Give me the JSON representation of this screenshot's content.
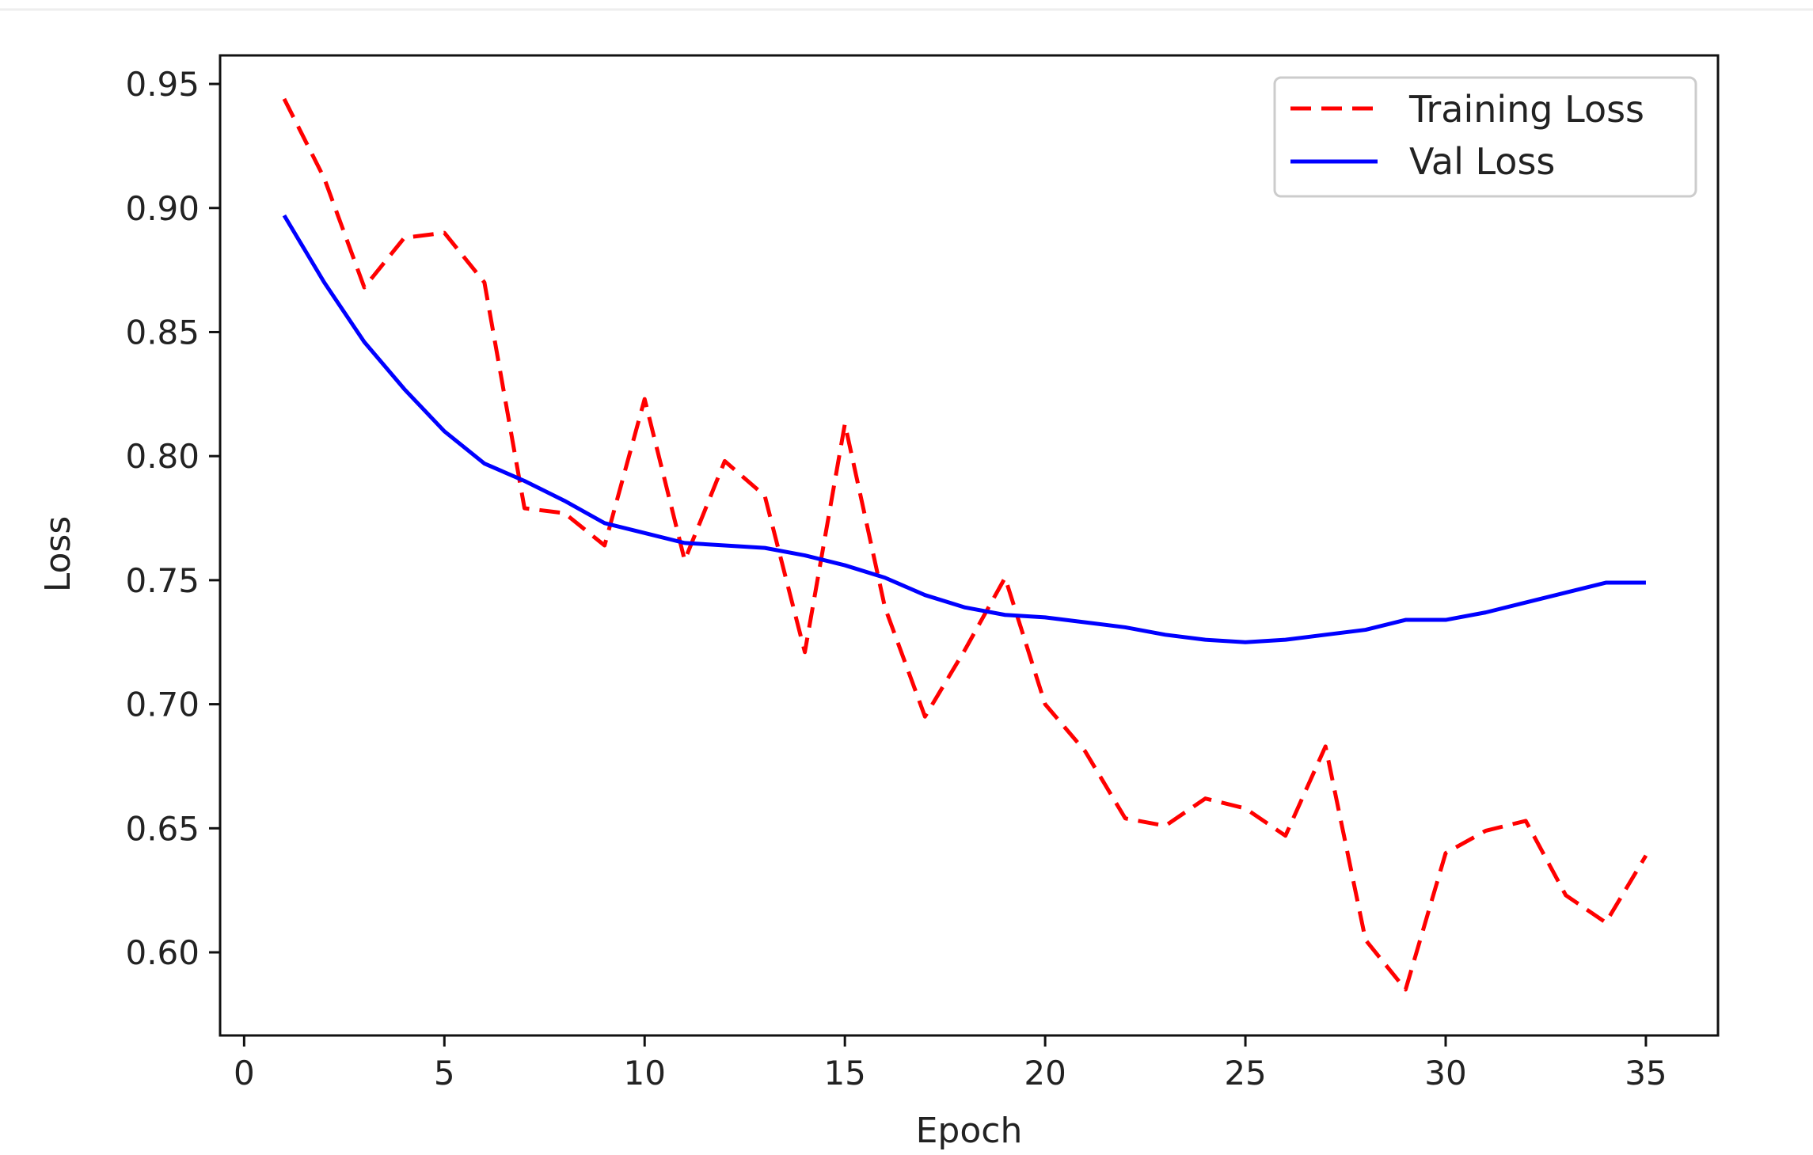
{
  "chart_data": {
    "type": "line",
    "title": "",
    "xlabel": "Epoch",
    "ylabel": "Loss",
    "xlim": [
      -0.6,
      36.8
    ],
    "ylim": [
      0.5665,
      0.9615
    ],
    "xticks": [
      0,
      5,
      10,
      15,
      20,
      25,
      30,
      35
    ],
    "yticks": [
      0.6,
      0.65,
      0.7,
      0.75,
      0.8,
      0.85,
      0.9,
      0.95
    ],
    "xtick_labels": [
      "0",
      "5",
      "10",
      "15",
      "20",
      "25",
      "30",
      "35"
    ],
    "ytick_labels": [
      "0.60",
      "0.65",
      "0.70",
      "0.75",
      "0.80",
      "0.85",
      "0.90",
      "0.95"
    ],
    "grid": false,
    "legend_position": "top-right",
    "x": [
      1,
      2,
      3,
      4,
      5,
      6,
      7,
      8,
      9,
      10,
      11,
      12,
      13,
      14,
      15,
      16,
      17,
      18,
      19,
      20,
      21,
      22,
      23,
      24,
      25,
      26,
      27,
      28,
      29,
      30,
      31,
      32,
      33,
      34,
      35
    ],
    "series": [
      {
        "name": "Training Loss",
        "color": "#ff0000",
        "style": "dashed",
        "values": [
          0.944,
          0.912,
          0.868,
          0.888,
          0.89,
          0.87,
          0.779,
          0.777,
          0.764,
          0.823,
          0.758,
          0.798,
          0.784,
          0.721,
          0.813,
          0.739,
          0.695,
          0.722,
          0.751,
          0.7,
          0.681,
          0.654,
          0.651,
          0.662,
          0.658,
          0.647,
          0.683,
          0.605,
          0.585,
          0.64,
          0.649,
          0.653,
          0.623,
          0.612,
          0.639
        ]
      },
      {
        "name": "Val Loss",
        "color": "#0000ff",
        "style": "solid",
        "values": [
          0.897,
          0.87,
          0.846,
          0.827,
          0.81,
          0.797,
          0.79,
          0.782,
          0.773,
          0.769,
          0.765,
          0.764,
          0.763,
          0.76,
          0.756,
          0.751,
          0.744,
          0.739,
          0.736,
          0.735,
          0.733,
          0.731,
          0.728,
          0.726,
          0.725,
          0.726,
          0.728,
          0.73,
          0.734,
          0.734,
          0.737,
          0.741,
          0.745,
          0.749,
          0.749
        ]
      }
    ]
  }
}
